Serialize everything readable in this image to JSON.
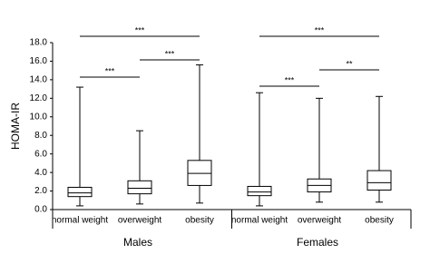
{
  "chart_data": {
    "type": "box",
    "y_label": "HOMA-IR",
    "categories": [
      "normal weight",
      "overweight",
      "obesity",
      "normal weight",
      "overweight",
      "obesity"
    ],
    "groups": [
      "Males",
      "Females"
    ],
    "boxes": [
      {
        "min": 0.4,
        "q1": 1.4,
        "median": 1.8,
        "q3": 2.4,
        "max": 13.2
      },
      {
        "min": 0.6,
        "q1": 1.7,
        "median": 2.3,
        "q3": 3.1,
        "max": 8.5
      },
      {
        "min": 0.7,
        "q1": 2.6,
        "median": 3.9,
        "q3": 5.3,
        "max": 15.6
      },
      {
        "min": 0.4,
        "q1": 1.5,
        "median": 1.9,
        "q3": 2.5,
        "max": 12.6
      },
      {
        "min": 0.8,
        "q1": 1.9,
        "median": 2.6,
        "q3": 3.3,
        "max": 12.0
      },
      {
        "min": 0.8,
        "q1": 2.1,
        "median": 2.9,
        "q3": 4.2,
        "max": 12.2
      }
    ],
    "color": "#000000",
    "ylim": [
      0,
      18
    ],
    "yticks": [
      {
        "value": 0,
        "label": "0.0"
      },
      {
        "value": 2,
        "label": "2.0"
      },
      {
        "value": 4,
        "label": "4.0"
      },
      {
        "value": 6,
        "label": "6.0"
      },
      {
        "value": 8,
        "label": "8.0"
      },
      {
        "value": 10,
        "label": "10.0"
      },
      {
        "value": 12,
        "label": "12.0"
      },
      {
        "value": 14,
        "label": "14.0"
      },
      {
        "value": 16,
        "label": "16.0"
      },
      {
        "value": 18,
        "label": "18.0"
      }
    ],
    "annotations": [
      {
        "text": "***",
        "from": 0,
        "to": 2
      },
      {
        "text": "***",
        "from": 0,
        "to": 1
      },
      {
        "text": "***",
        "from": 1,
        "to": 2
      },
      {
        "text": "***",
        "from": 3,
        "to": 5
      },
      {
        "text": "***",
        "from": 3,
        "to": 4
      },
      {
        "text": "**",
        "from": 4,
        "to": 5
      }
    ]
  }
}
